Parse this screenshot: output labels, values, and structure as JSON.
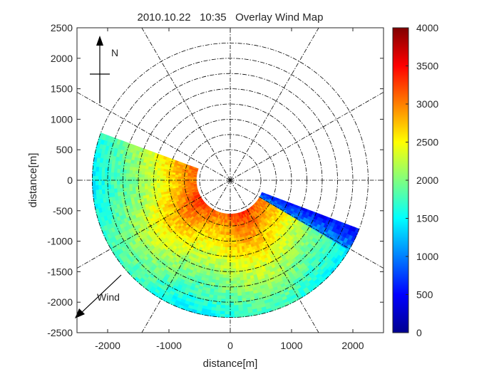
{
  "chart_data": {
    "type": "heatmap",
    "title": "2010.10.22   10:35   Overlay Wind Map",
    "xlabel": "distance[m]",
    "ylabel": "distance[m]",
    "xlim": [
      -2500,
      2500
    ],
    "ylim": [
      -2500,
      2500
    ],
    "x_ticks": [
      -2000,
      -1000,
      0,
      1000,
      2000
    ],
    "y_ticks": [
      2500,
      2000,
      1500,
      1000,
      500,
      0,
      -500,
      -1000,
      -1500,
      -2000,
      -2500
    ],
    "grid": "polar",
    "grid_rings_m": [
      500,
      750,
      1000,
      1250,
      1500,
      1750,
      2000,
      2250
    ],
    "grid_spokes_deg": [
      0,
      30,
      60,
      90,
      120,
      150,
      180,
      210,
      240,
      270,
      300,
      330
    ],
    "colorbar": {
      "min": 0,
      "max": 4000,
      "ticks": [
        0,
        500,
        1000,
        1500,
        2000,
        2500,
        3000,
        3500,
        4000
      ],
      "colormap": "jet"
    },
    "scan_sector": {
      "inner_radius_m": 550,
      "outer_radius_m": 2250,
      "start_bearing_deg": 111,
      "end_bearing_deg": 290
    },
    "value_profile": [
      {
        "range_m": 550,
        "value": 3200
      },
      {
        "range_m": 1000,
        "value": 2700
      },
      {
        "range_m": 1500,
        "value": 2200
      },
      {
        "range_m": 2000,
        "value": 1800
      },
      {
        "range_m": 2250,
        "value": 1600
      }
    ],
    "low_value_band": {
      "bearing_deg": 114,
      "value": 500
    },
    "north_indicator": "N",
    "wind_indicator": "Wind",
    "wind_from_bearing_deg": 45
  },
  "colors": {
    "axis": "#262626",
    "grid": "#000000",
    "background": "#ffffff"
  }
}
